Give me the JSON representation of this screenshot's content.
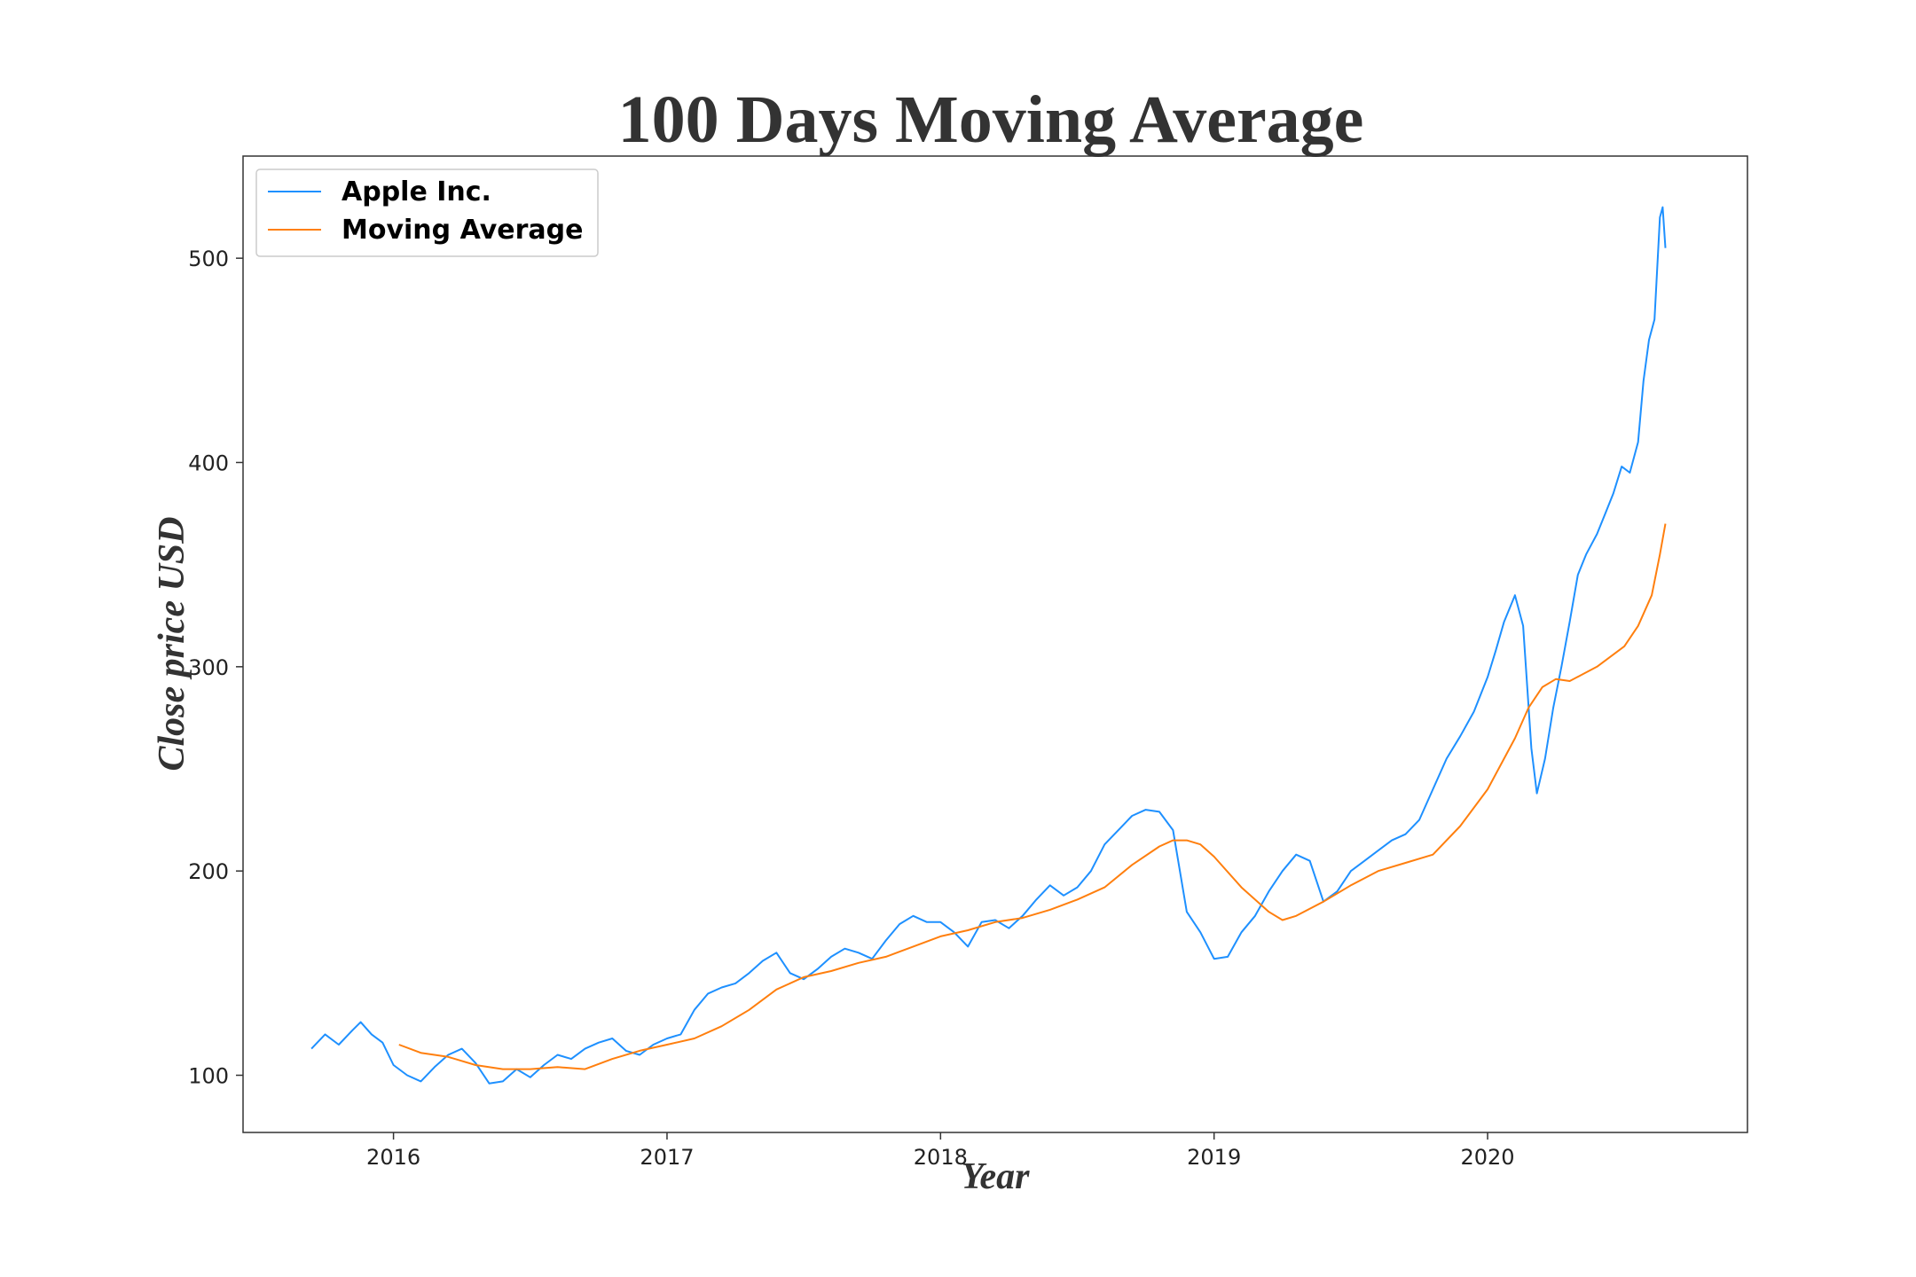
{
  "chart_data": {
    "type": "line",
    "title": "100 Days Moving Average",
    "xlabel": "Year",
    "ylabel": "Close price USD",
    "xlim": [
      2015.45,
      2020.95
    ],
    "ylim": [
      72,
      550
    ],
    "x_ticks": [
      2016,
      2017,
      2018,
      2019,
      2020
    ],
    "x_tick_labels": [
      "2016",
      "2017",
      "2018",
      "2019",
      "2020"
    ],
    "y_ticks": [
      100,
      200,
      300,
      400,
      500
    ],
    "y_tick_labels": [
      "100",
      "200",
      "300",
      "400",
      "500"
    ],
    "grid": false,
    "legend_position": "upper left",
    "series": [
      {
        "name": "Apple Inc.",
        "color": "#1e90ff",
        "x": [
          2015.7,
          2015.75,
          2015.8,
          2015.85,
          2015.88,
          2015.92,
          2015.96,
          2016.0,
          2016.05,
          2016.1,
          2016.15,
          2016.2,
          2016.25,
          2016.3,
          2016.35,
          2016.4,
          2016.45,
          2016.5,
          2016.55,
          2016.6,
          2016.65,
          2016.7,
          2016.75,
          2016.8,
          2016.85,
          2016.9,
          2016.95,
          2017.0,
          2017.05,
          2017.1,
          2017.15,
          2017.2,
          2017.25,
          2017.3,
          2017.35,
          2017.4,
          2017.45,
          2017.5,
          2017.55,
          2017.6,
          2017.65,
          2017.7,
          2017.75,
          2017.8,
          2017.85,
          2017.9,
          2017.95,
          2018.0,
          2018.05,
          2018.1,
          2018.15,
          2018.2,
          2018.25,
          2018.3,
          2018.35,
          2018.4,
          2018.45,
          2018.5,
          2018.55,
          2018.6,
          2018.65,
          2018.7,
          2018.75,
          2018.8,
          2018.85,
          2018.9,
          2018.95,
          2019.0,
          2019.05,
          2019.1,
          2019.15,
          2019.2,
          2019.25,
          2019.3,
          2019.35,
          2019.4,
          2019.45,
          2019.5,
          2019.55,
          2019.6,
          2019.65,
          2019.7,
          2019.75,
          2019.8,
          2019.85,
          2019.9,
          2019.95,
          2020.0,
          2020.03,
          2020.06,
          2020.1,
          2020.13,
          2020.16,
          2020.18,
          2020.21,
          2020.24,
          2020.27,
          2020.3,
          2020.33,
          2020.36,
          2020.4,
          2020.43,
          2020.46,
          2020.49,
          2020.52,
          2020.55,
          2020.57,
          2020.59,
          2020.61,
          2020.63,
          2020.64,
          2020.65
        ],
        "y": [
          113,
          120,
          115,
          122,
          126,
          120,
          116,
          105,
          100,
          97,
          104,
          110,
          113,
          106,
          96,
          97,
          103,
          99,
          105,
          110,
          108,
          113,
          116,
          118,
          112,
          110,
          115,
          118,
          120,
          132,
          140,
          143,
          145,
          150,
          156,
          160,
          150,
          147,
          152,
          158,
          162,
          160,
          157,
          166,
          174,
          178,
          175,
          175,
          170,
          163,
          175,
          176,
          172,
          178,
          186,
          193,
          188,
          192,
          200,
          213,
          220,
          227,
          230,
          229,
          220,
          180,
          170,
          157,
          158,
          170,
          178,
          190,
          200,
          208,
          205,
          185,
          190,
          200,
          205,
          210,
          215,
          218,
          225,
          240,
          255,
          266,
          278,
          295,
          308,
          322,
          335,
          320,
          260,
          238,
          255,
          280,
          300,
          322,
          345,
          355,
          365,
          375,
          385,
          398,
          395,
          410,
          440,
          460,
          470,
          520,
          525,
          505
        ]
      },
      {
        "name": "Moving Average",
        "color": "#ff7f0e",
        "x": [
          2016.02,
          2016.1,
          2016.2,
          2016.3,
          2016.4,
          2016.5,
          2016.6,
          2016.7,
          2016.8,
          2016.9,
          2017.0,
          2017.1,
          2017.2,
          2017.3,
          2017.4,
          2017.5,
          2017.6,
          2017.7,
          2017.8,
          2017.9,
          2018.0,
          2018.1,
          2018.2,
          2018.3,
          2018.4,
          2018.5,
          2018.6,
          2018.7,
          2018.8,
          2018.85,
          2018.9,
          2018.95,
          2019.0,
          2019.1,
          2019.2,
          2019.25,
          2019.3,
          2019.4,
          2019.5,
          2019.6,
          2019.7,
          2019.8,
          2019.9,
          2020.0,
          2020.1,
          2020.15,
          2020.2,
          2020.25,
          2020.3,
          2020.4,
          2020.5,
          2020.55,
          2020.6,
          2020.63,
          2020.65
        ],
        "y": [
          115,
          111,
          109,
          105,
          103,
          103,
          104,
          103,
          108,
          112,
          115,
          118,
          124,
          132,
          142,
          148,
          151,
          155,
          158,
          163,
          168,
          171,
          175,
          177,
          181,
          186,
          192,
          203,
          212,
          215,
          215,
          213,
          207,
          192,
          180,
          176,
          178,
          185,
          193,
          200,
          204,
          208,
          222,
          240,
          265,
          280,
          290,
          294,
          293,
          300,
          310,
          320,
          335,
          355,
          370
        ]
      }
    ]
  }
}
